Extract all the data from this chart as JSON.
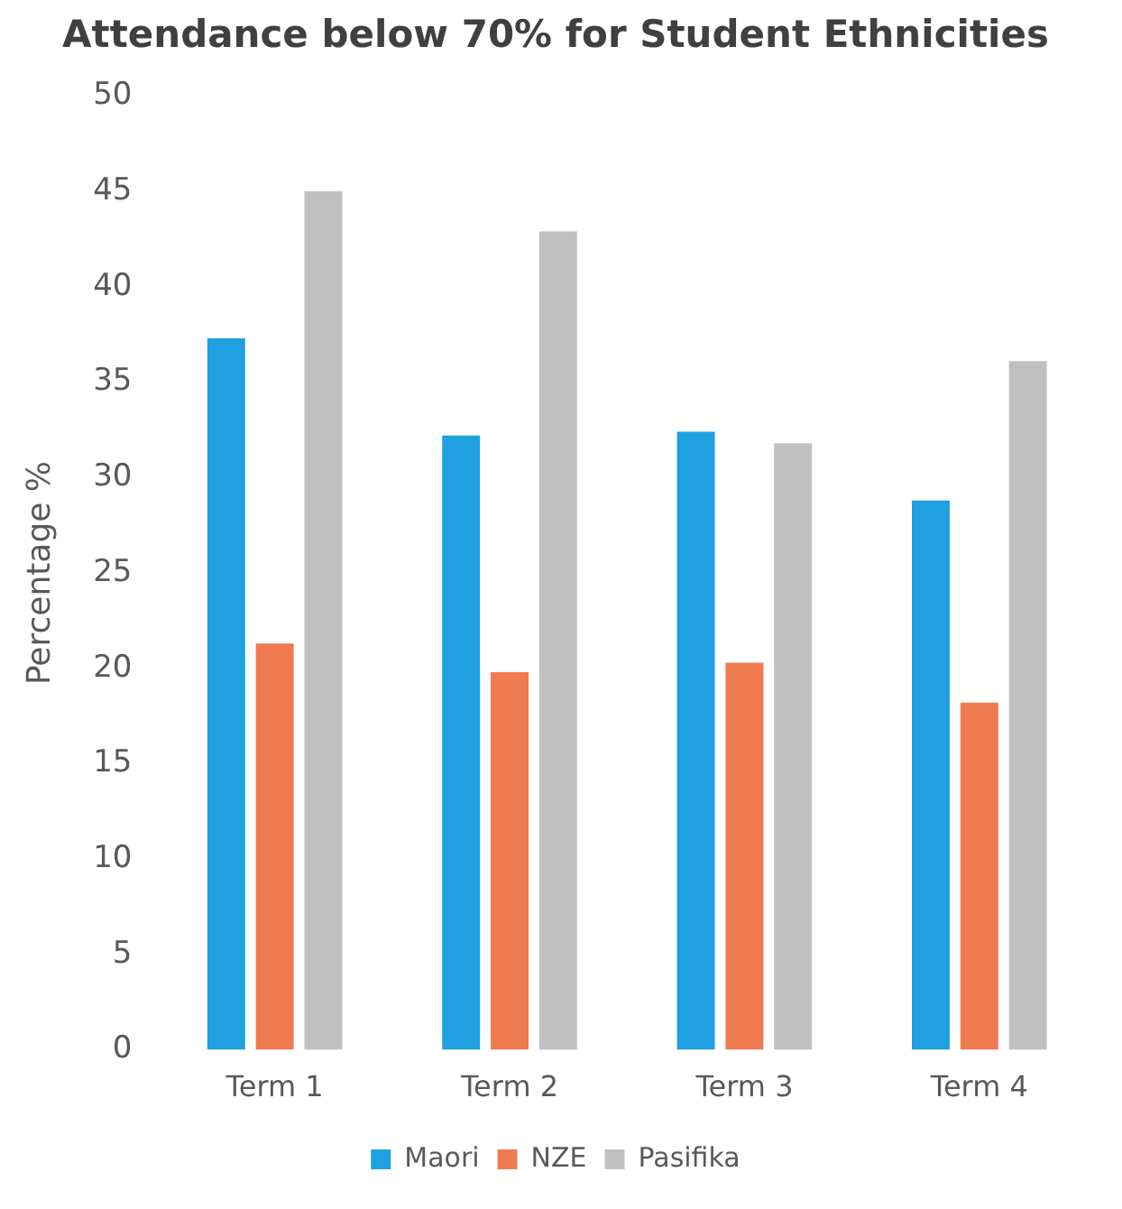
{
  "chart_data": {
    "type": "bar",
    "title": "Attendance below 70% for Student Ethnicities",
    "ylabel": "Percentage %",
    "categories": [
      "Term 1",
      "Term 2",
      "Term 3",
      "Term 4"
    ],
    "series": [
      {
        "name": "Maori",
        "color": "#1fa0e0",
        "values": [
          37.3,
          32.2,
          32.4,
          28.8
        ]
      },
      {
        "name": "NZE",
        "color": "#f07a50",
        "values": [
          21.3,
          19.8,
          20.3,
          18.2
        ]
      },
      {
        "name": "Pasifika",
        "color": "#c0c0c0",
        "values": [
          45.0,
          42.9,
          31.8,
          36.1
        ]
      }
    ],
    "ylim": [
      0,
      50
    ],
    "yticks": [
      0,
      5,
      10,
      15,
      20,
      25,
      30,
      35,
      40,
      45,
      50
    ],
    "grid": false,
    "legend": "bottom"
  }
}
